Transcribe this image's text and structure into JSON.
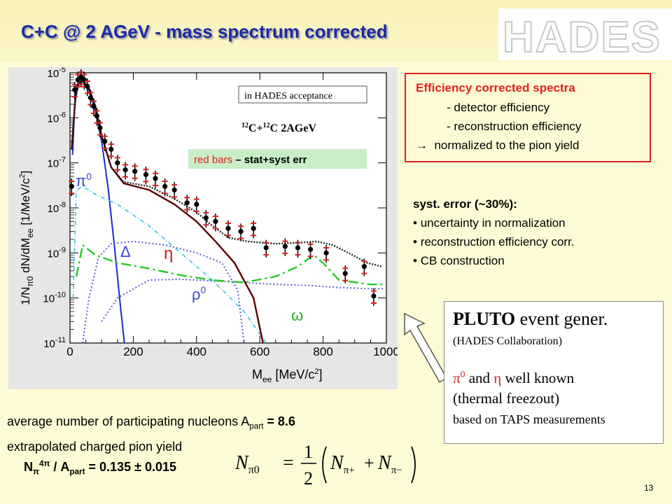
{
  "slide": {
    "title": "C+C @ 2 AGeV - mass spectrum corrected",
    "logo_text": "HADES",
    "page_number": "13"
  },
  "efficiency_box": {
    "title": "Efficiency corrected spectra",
    "line1": "-  detector efficiency",
    "line2": "-  reconstruction efficiency",
    "arrow_glyph": "→",
    "line3": "normalized to the pion yield"
  },
  "syst_box": {
    "title": "syst. error (~30%):",
    "items": [
      "uncertainty in normalization",
      "reconstruction efficiency corr.",
      "CB construction"
    ]
  },
  "pluto_box": {
    "title_bold": "PLUTO",
    "title_rest": " event gener.",
    "subtitle": "(HADES Collaboration)",
    "pi0": "π",
    "pi0_sup": "0",
    "and": " and ",
    "eta": "η",
    "well_known": " well known",
    "line2": "(thermal freezout)",
    "line3": "based on TAPS measurements"
  },
  "bottom": {
    "avg_prefix": "average number of participating nucleons A",
    "avg_sub": "part",
    "avg_value": " = 8.6",
    "yield_label": "extrapolated charged pion yield",
    "yield_N": "N",
    "yield_sub": "π",
    "yield_sup": "4π",
    "yield_mid": " / A",
    "yield_sub2": "part",
    "yield_value": " = 0.135 ± 0.015"
  },
  "formula": {
    "lhs_N": "N",
    "lhs_sub": "π0",
    "eq": "=",
    "num": "1",
    "den": "2",
    "term1_N": "N",
    "term1_sub": "π+",
    "plus": "+",
    "term2_N": "N",
    "term2_sub": "π−"
  },
  "colors": {
    "title_blue": "#1b2aa6",
    "red": "#e02020",
    "data_black": "#000000",
    "pi0_blue": "#1a2bd1",
    "eta_blue": "#5a5ad8",
    "delta_cyan": "#2fc6e0",
    "rho_green": "#22cc22",
    "legend_red": "#c81e1e",
    "legend_green": "#22aa22",
    "legend_blue": "#3a4ad0",
    "sum_dotted": "#222222",
    "cocktail_darkred": "#5a0000",
    "plot_bg": "#e6e6e6",
    "annot_green_bg": "#c8eec8"
  },
  "chart_data": {
    "type": "scatter",
    "xlabel_main": "M",
    "xlabel_sub": "ee",
    "xlabel_unit": " [MeV/c",
    "xlabel_unit_sup": "2",
    "xlabel_unit_end": "]",
    "ylabel_prefix": "1/N",
    "ylabel_sub": "π0",
    "ylabel_mid": " dN/dM",
    "ylabel_sub2": "ee",
    "ylabel_unit": " [1/MeV/c",
    "ylabel_unit_sup": "2",
    "ylabel_unit_end": "]",
    "y_scale": "log",
    "xlim": [
      0,
      1000
    ],
    "ylim_exp": [
      -11,
      -5
    ],
    "x_ticks": [
      0,
      200,
      400,
      600,
      800,
      1000
    ],
    "y_ticks_exp": [
      -11,
      -10,
      -9,
      -8,
      -7,
      -6,
      -5
    ],
    "y_tick_base": "10",
    "grid": false,
    "annot_acceptance": "in HADES acceptance",
    "annot_system_prefix_sup": "12",
    "annot_system_C": "C+",
    "annot_system_C2": "C",
    "annot_system_energy": "  2AGeV",
    "annot_redbars": "red bars",
    "annot_redbars_rest": " – stat+syst err",
    "curve_labels": {
      "pi0": "π",
      "pi0_sup": "0",
      "delta": "Δ",
      "eta": "η",
      "rho": "ρ",
      "rho_sup": "0",
      "omega": "ω"
    },
    "series": [
      {
        "name": "data",
        "points": [
          [
            5,
            3e-08
          ],
          [
            15,
            4.2e-06
          ],
          [
            25,
            7e-06
          ],
          [
            35,
            8e-06
          ],
          [
            45,
            7e-06
          ],
          [
            55,
            5e-06
          ],
          [
            65,
            2.8e-06
          ],
          [
            75,
            1.8e-06
          ],
          [
            85,
            1.1e-06
          ],
          [
            95,
            6e-07
          ],
          [
            110,
            3e-07
          ],
          [
            130,
            2e-07
          ],
          [
            150,
            1e-07
          ],
          [
            175,
            7e-08
          ],
          [
            205,
            6.5e-08
          ],
          [
            240,
            5.5e-08
          ],
          [
            270,
            4.5e-08
          ],
          [
            300,
            3e-08
          ],
          [
            330,
            2.5e-08
          ],
          [
            370,
            1.3e-08
          ],
          [
            400,
            1.2e-08
          ],
          [
            430,
            6e-09
          ],
          [
            460,
            5e-09
          ],
          [
            500,
            3.5e-09
          ],
          [
            540,
            3e-09
          ],
          [
            580,
            3.5e-09
          ],
          [
            620,
            1.3e-09
          ],
          [
            680,
            1.4e-09
          ],
          [
            720,
            1.3e-09
          ],
          [
            760,
            1.2e-09
          ],
          [
            810,
            1e-09
          ],
          [
            870,
            3.5e-10
          ],
          [
            930,
            5e-10
          ],
          [
            960,
            1.1e-10
          ]
        ]
      }
    ]
  }
}
